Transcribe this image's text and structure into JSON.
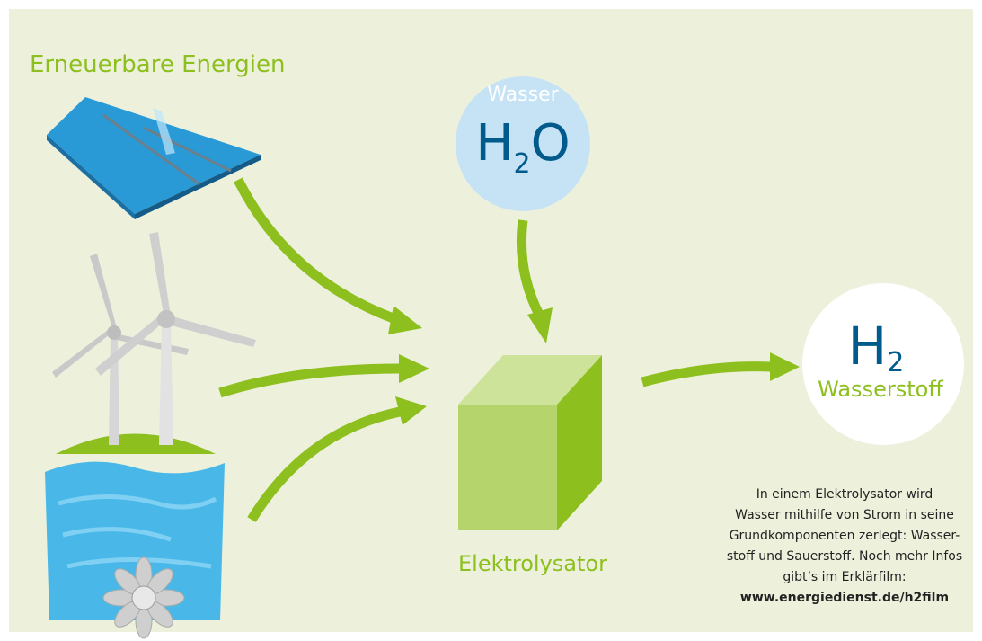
{
  "title": "Erneuerbare Energien",
  "water": {
    "label": "Wasser",
    "formula": {
      "base": "H",
      "sub": "2",
      "end": "O"
    }
  },
  "electrolyzer": {
    "label": "Elektrolysator"
  },
  "hydrogen": {
    "formula": {
      "base": "H",
      "sub": "2"
    },
    "label": "Wasserstoff"
  },
  "description": {
    "lines": [
      "In einem Elektrolysator wird",
      "Wasser mithilfe von Strom in seine",
      "Grundkomponenten zerlegt: Wasser-",
      "stoff und Sauerstoff. Noch mehr Infos",
      "gibt’s im Erklärfilm:"
    ],
    "link": "www.energiedienst.de/h2film"
  }
}
